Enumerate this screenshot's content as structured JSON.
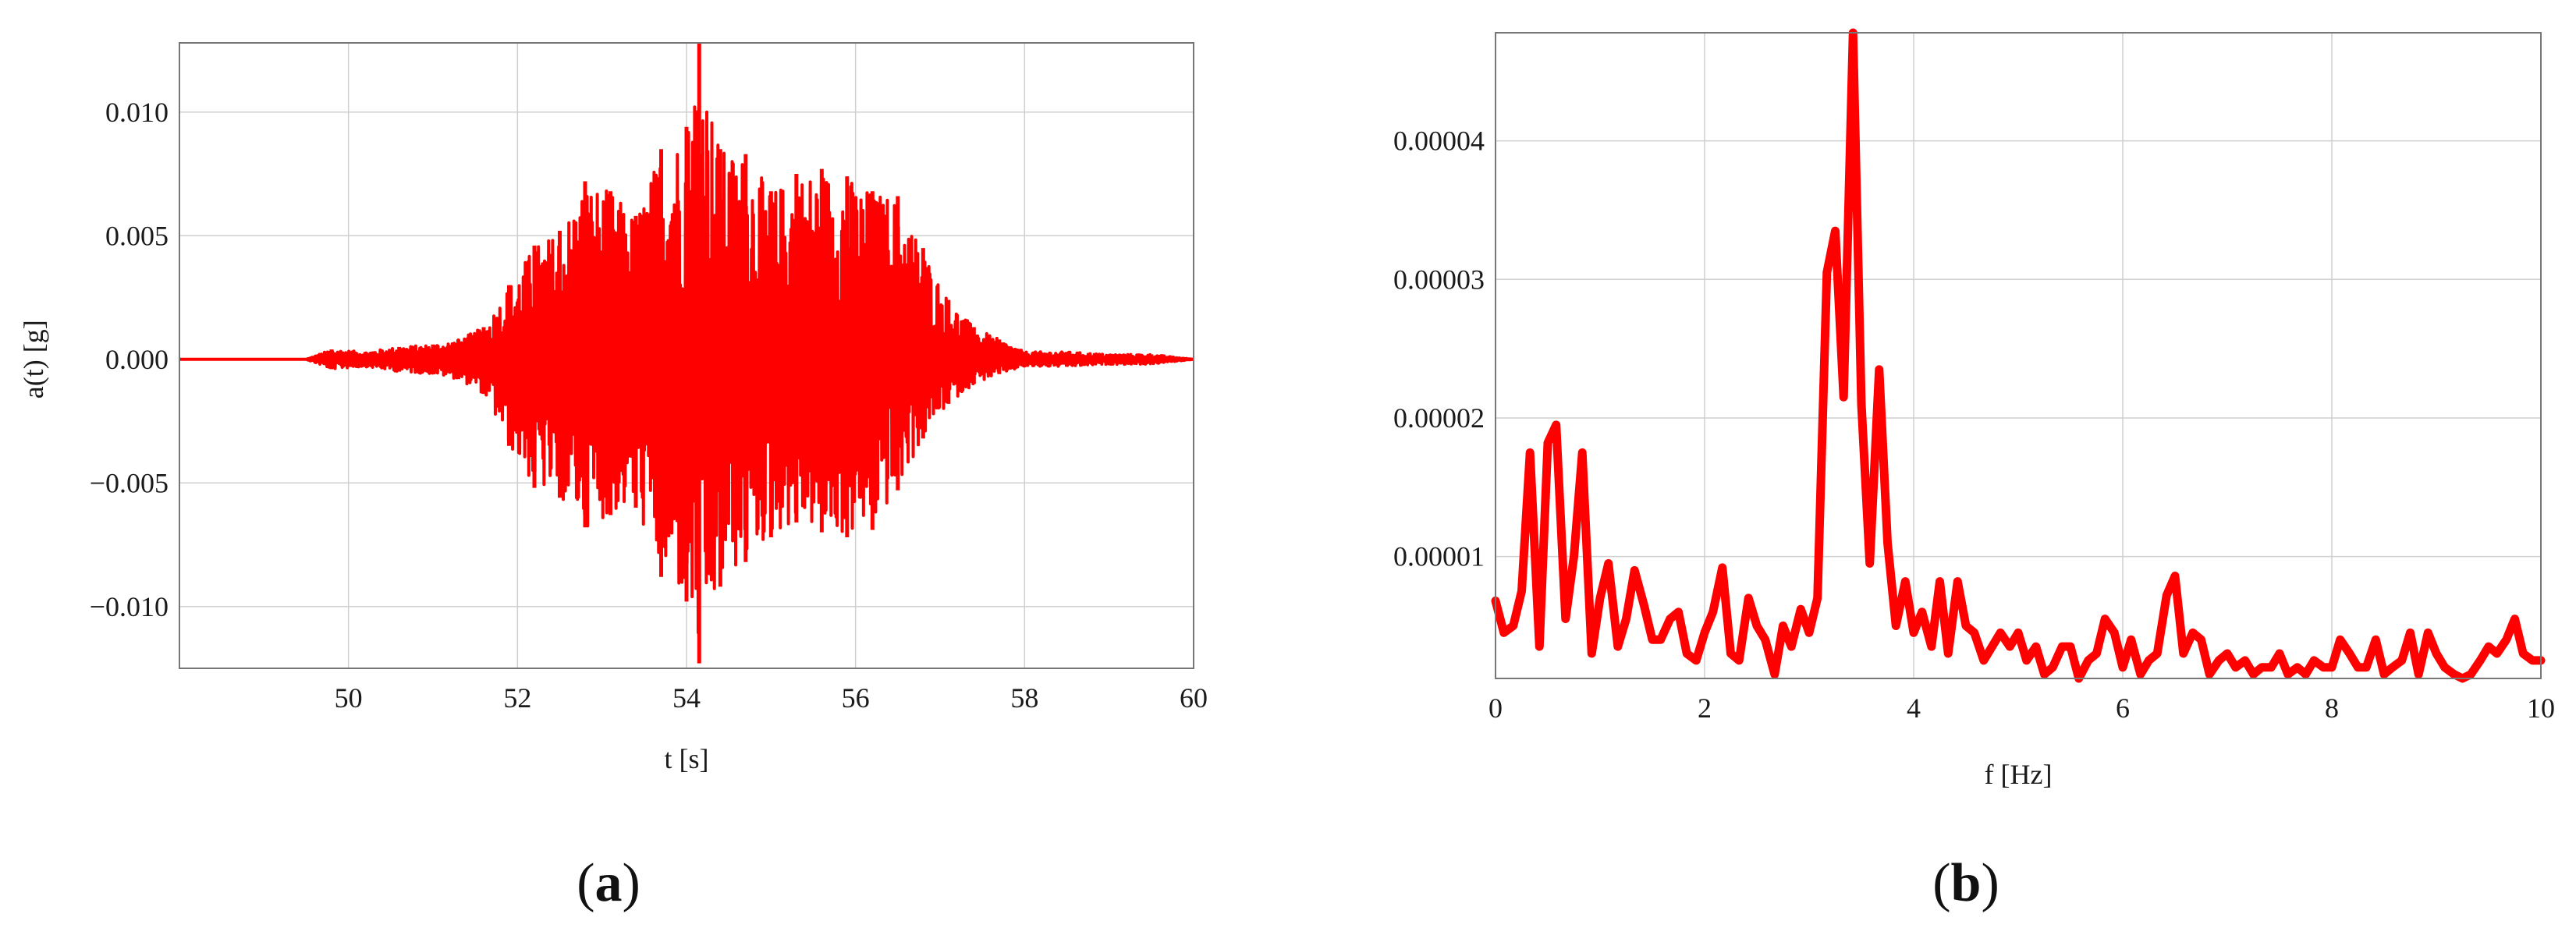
{
  "colors": {
    "series": "#ff0000",
    "grid": "#cfcfcf",
    "frame": "#777777",
    "zero_line": "#000000"
  },
  "chart_data": [
    {
      "id": "a",
      "panel_label": "a",
      "type": "line",
      "title": "",
      "xlabel": "t [s]",
      "ylabel": "a(t) [g]",
      "xlim": [
        48,
        60
      ],
      "ylim": [
        -0.0125,
        0.0128
      ],
      "xticks": [
        50,
        52,
        54,
        56,
        58,
        60
      ],
      "xtick_labels": [
        "50",
        "52",
        "54",
        "56",
        "58",
        "60"
      ],
      "yticks": [
        -0.01,
        -0.005,
        0.0,
        0.005,
        0.01
      ],
      "ytick_labels": [
        "−0.010",
        "−0.005",
        "0.000",
        "0.005",
        "0.010"
      ],
      "grid": true,
      "envelope": {
        "t": [
          48.0,
          49.5,
          49.8,
          50.2,
          50.6,
          51.0,
          51.3,
          51.6,
          51.9,
          52.2,
          52.5,
          52.8,
          53.1,
          53.4,
          53.7,
          54.0,
          54.15,
          54.4,
          54.7,
          55.0,
          55.3,
          55.6,
          55.9,
          56.2,
          56.5,
          56.8,
          57.1,
          57.4,
          57.7,
          58.0,
          58.5,
          59.0,
          59.5,
          60.0
        ],
        "upper": [
          0.0,
          0.0,
          0.0004,
          0.0003,
          0.0005,
          0.0006,
          0.0008,
          0.0013,
          0.003,
          0.0046,
          0.0052,
          0.0072,
          0.0068,
          0.0058,
          0.0085,
          0.0094,
          0.0128,
          0.0085,
          0.0083,
          0.0068,
          0.0075,
          0.0077,
          0.0074,
          0.0068,
          0.0066,
          0.0045,
          0.0024,
          0.0013,
          0.0008,
          0.0003,
          0.0003,
          0.0002,
          0.0002,
          0.0
        ],
        "lower": [
          0.0,
          0.0,
          -0.0004,
          -0.0003,
          -0.0005,
          -0.0006,
          -0.0008,
          -0.0014,
          -0.0035,
          -0.0052,
          -0.0056,
          -0.0068,
          -0.0063,
          -0.006,
          -0.0088,
          -0.0098,
          -0.0123,
          -0.0092,
          -0.0082,
          -0.0072,
          -0.0066,
          -0.007,
          -0.0072,
          -0.0069,
          -0.0053,
          -0.0032,
          -0.0018,
          -0.001,
          -0.0006,
          -0.0003,
          -0.0003,
          -0.0002,
          -0.0002,
          0.0
        ]
      }
    },
    {
      "id": "b",
      "panel_label": "b",
      "type": "line",
      "title": "",
      "xlabel": "f [Hz]",
      "ylabel": "",
      "xlim": [
        0,
        10
      ],
      "ylim": [
        1.2e-06,
        4.78e-05
      ],
      "xticks": [
        0,
        2,
        4,
        6,
        8,
        10
      ],
      "xtick_labels": [
        "0",
        "2",
        "4",
        "6",
        "8",
        "10"
      ],
      "yticks": [
        1e-05,
        2e-05,
        3e-05,
        4e-05
      ],
      "ytick_labels": [
        "0.00001",
        "0.00002",
        "0.00003",
        "0.00004"
      ],
      "grid": true,
      "x": [
        0.0,
        0.08,
        0.17,
        0.25,
        0.33,
        0.42,
        0.5,
        0.58,
        0.67,
        0.75,
        0.83,
        0.92,
        1.0,
        1.08,
        1.17,
        1.25,
        1.33,
        1.42,
        1.5,
        1.58,
        1.67,
        1.75,
        1.83,
        1.92,
        2.0,
        2.08,
        2.17,
        2.25,
        2.33,
        2.42,
        2.5,
        2.58,
        2.67,
        2.75,
        2.83,
        2.92,
        3.0,
        3.08,
        3.17,
        3.25,
        3.33,
        3.42,
        3.5,
        3.58,
        3.67,
        3.75,
        3.83,
        3.92,
        4.0,
        4.08,
        4.17,
        4.25,
        4.33,
        4.42,
        4.5,
        4.58,
        4.67,
        4.75,
        4.83,
        4.92,
        5.0,
        5.08,
        5.17,
        5.25,
        5.33,
        5.42,
        5.5,
        5.58,
        5.67,
        5.75,
        5.83,
        5.92,
        6.0,
        6.08,
        6.17,
        6.25,
        6.33,
        6.42,
        6.5,
        6.58,
        6.67,
        6.75,
        6.83,
        6.92,
        7.0,
        7.08,
        7.17,
        7.25,
        7.33,
        7.42,
        7.5,
        7.58,
        7.67,
        7.75,
        7.83,
        7.92,
        8.0,
        8.08,
        8.17,
        8.25,
        8.33,
        8.42,
        8.5,
        8.58,
        8.67,
        8.75,
        8.83,
        8.92,
        9.0,
        9.08,
        9.17,
        9.25,
        9.33,
        9.42,
        9.5,
        9.58,
        9.67,
        9.75,
        9.83,
        9.92,
        10.0
      ],
      "y": [
        6.8e-06,
        4.5e-06,
        5e-06,
        7.5e-06,
        1.75e-05,
        3.5e-06,
        1.82e-05,
        1.95e-05,
        5.5e-06,
        1e-05,
        1.75e-05,
        3e-06,
        7e-06,
        9.5e-06,
        3.5e-06,
        5.5e-06,
        9e-06,
        6.5e-06,
        4e-06,
        4e-06,
        5.5e-06,
        6e-06,
        3e-06,
        2.5e-06,
        4.5e-06,
        6e-06,
        9.2e-06,
        3e-06,
        2.5e-06,
        7e-06,
        5e-06,
        4e-06,
        1.5e-06,
        5e-06,
        3.5e-06,
        6.2e-06,
        4.5e-06,
        7e-06,
        3.05e-05,
        3.35e-05,
        2.15e-05,
        4.78e-05,
        2.1e-05,
        9.5e-06,
        2.35e-05,
        1.1e-05,
        5e-06,
        8.2e-06,
        4.5e-06,
        6e-06,
        3.5e-06,
        8.2e-06,
        3e-06,
        8.2e-06,
        5e-06,
        4.5e-06,
        2.5e-06,
        3.5e-06,
        4.5e-06,
        3.5e-06,
        4.5e-06,
        2.5e-06,
        3.5e-06,
        1.5e-06,
        2e-06,
        3.5e-06,
        3.5e-06,
        1.2e-06,
        2.5e-06,
        3e-06,
        5.5e-06,
        4.5e-06,
        2e-06,
        4e-06,
        1.5e-06,
        2.5e-06,
        3e-06,
        7.2e-06,
        8.6e-06,
        3e-06,
        4.5e-06,
        4e-06,
        1.5e-06,
        2.5e-06,
        3e-06,
        2e-06,
        2.5e-06,
        1.5e-06,
        2e-06,
        2e-06,
        3e-06,
        1.5e-06,
        2e-06,
        1.5e-06,
        2.5e-06,
        2e-06,
        2e-06,
        4e-06,
        3e-06,
        2e-06,
        2e-06,
        4e-06,
        1.5e-06,
        2e-06,
        2.5e-06,
        4.5e-06,
        1.5e-06,
        4.5e-06,
        3e-06,
        2e-06,
        1.5e-06,
        1.2e-06,
        1.5e-06,
        2.5e-06,
        3.5e-06,
        3e-06,
        4e-06,
        5.5e-06,
        3e-06,
        2.5e-06,
        2.5e-06
      ]
    }
  ]
}
